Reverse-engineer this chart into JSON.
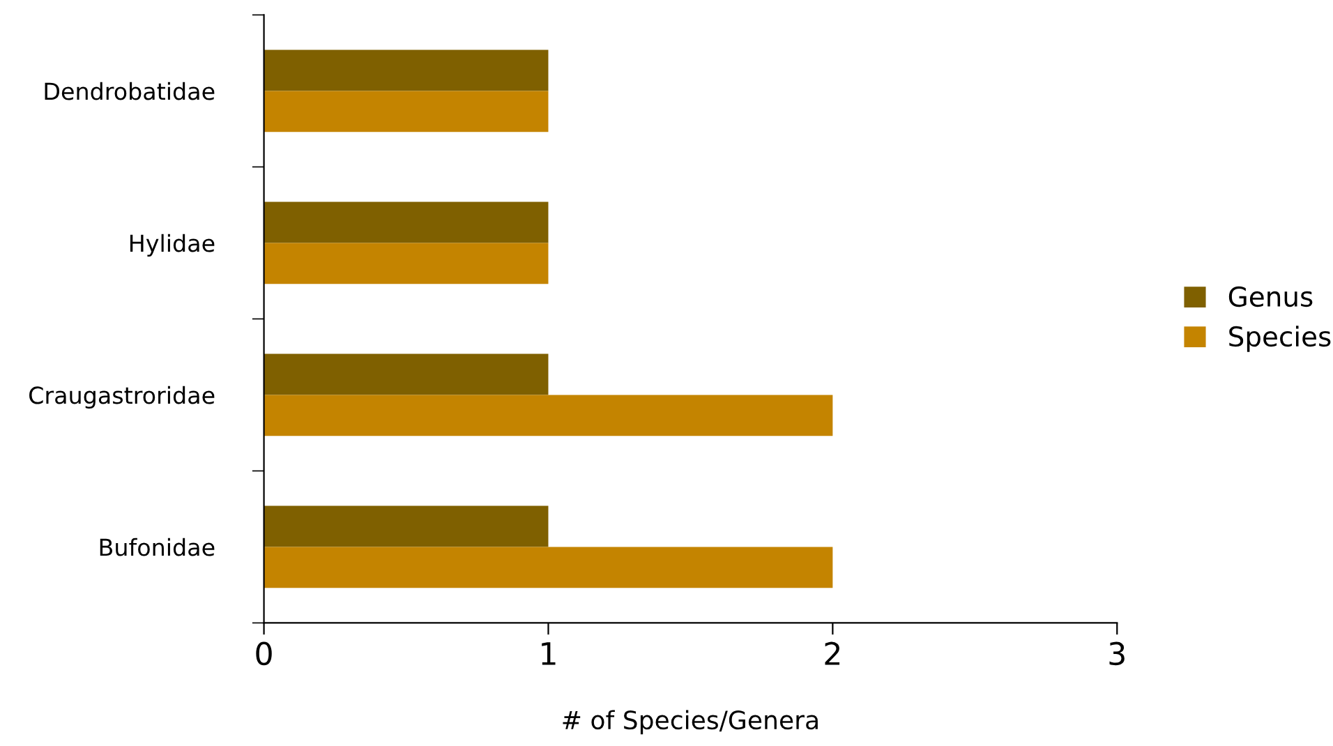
{
  "chart_data": {
    "type": "bar",
    "orientation": "horizontal",
    "xlabel": "# of Species/Genera",
    "categories": [
      "Dendrobatidae",
      "Hylidae",
      "Craugastroridae",
      "Bufonidae"
    ],
    "series": [
      {
        "name": "Genus",
        "color": "#7f6000",
        "values": [
          1,
          1,
          1,
          1
        ]
      },
      {
        "name": "Species",
        "color": "#c48400",
        "values": [
          1,
          1,
          2,
          2
        ]
      }
    ],
    "xlim": [
      0,
      3
    ],
    "xticks": [
      0,
      1,
      2,
      3
    ],
    "grid": false,
    "legend": "right"
  }
}
